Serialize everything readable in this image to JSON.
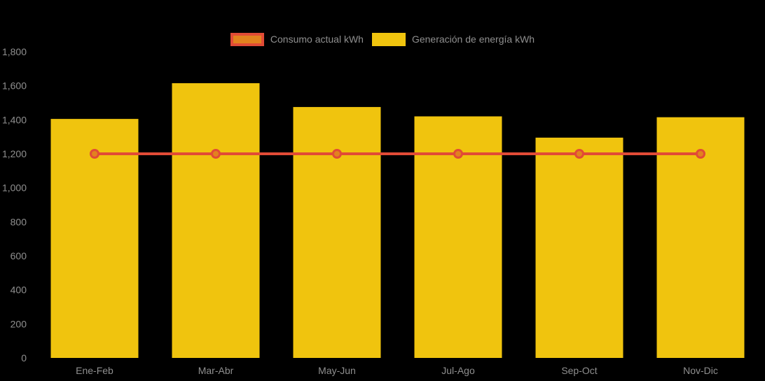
{
  "window": {
    "background": "#000000",
    "text_color": "#8F8F8F"
  },
  "legend": {
    "position": "top",
    "items": [
      {
        "label": "Consumo actual kWh",
        "fill": "#E2821E",
        "border": "#E14B36"
      },
      {
        "label": "Generación de energía kWh",
        "fill": "#F0C40E",
        "border": "#F0C40E"
      }
    ]
  },
  "chart_data": {
    "type": "bar",
    "title": "",
    "xlabel": "",
    "ylabel": "",
    "categories": [
      "Ene-Feb",
      "Mar-Abr",
      "May-Jun",
      "Jul-Ago",
      "Sep-Oct",
      "Nov-Dic"
    ],
    "series": [
      {
        "name": "Consumo actual kWh",
        "type": "line",
        "values": [
          1200,
          1200,
          1200,
          1200,
          1200,
          1200
        ],
        "color": "#E14B36",
        "point_fill": "#E2821E"
      },
      {
        "name": "Generación de energía kWh",
        "type": "bar",
        "values": [
          1405,
          1615,
          1475,
          1420,
          1295,
          1415
        ],
        "color": "#F0C40E"
      }
    ],
    "ylim": [
      0,
      1800
    ],
    "y_ticks": [
      0,
      200,
      400,
      600,
      800,
      1000,
      1200,
      1400,
      1600,
      1800
    ],
    "y_tick_labels": [
      "0",
      "200",
      "400",
      "600",
      "800",
      "1,000",
      "1,200",
      "1,400",
      "1,600",
      "1,800"
    ],
    "grid": false,
    "legend_position": "top"
  }
}
